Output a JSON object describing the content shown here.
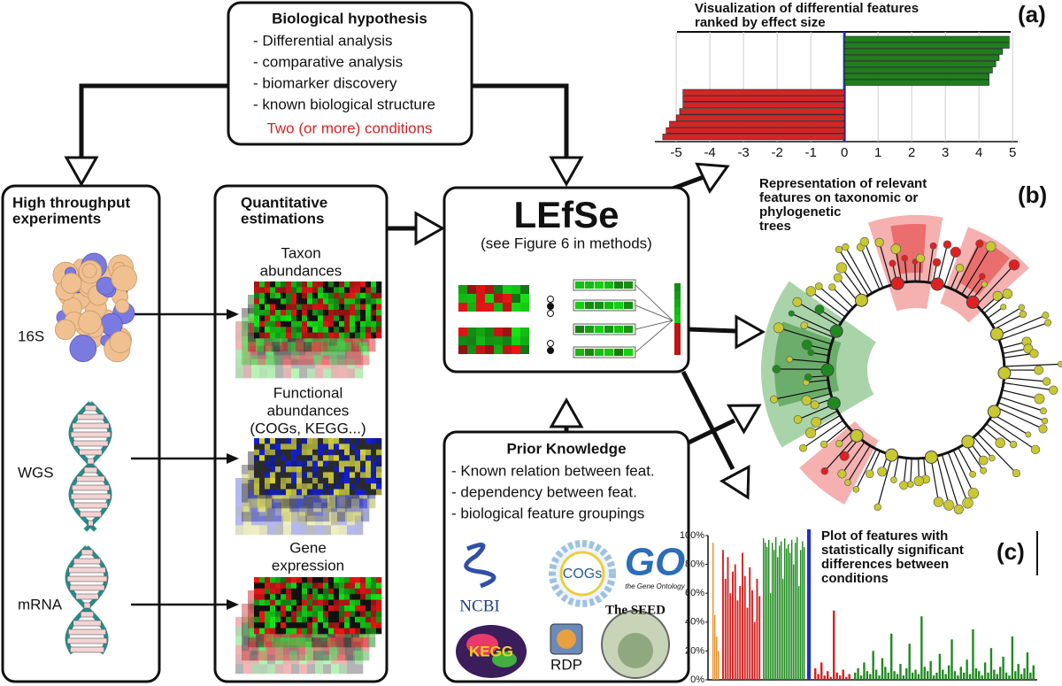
{
  "hypothesis": {
    "title": "Biological hypothesis",
    "items": [
      "- Differential analysis",
      "- comparative analysis",
      "- biomarker discovery",
      "- known biological structure"
    ],
    "conditions": "Two (or more) conditions"
  },
  "experiments": {
    "title": [
      "High throughput",
      "experiments"
    ],
    "labels": [
      "16S",
      "WGS",
      "mRNA"
    ]
  },
  "estimations": {
    "title": [
      "Quantitative",
      "estimations"
    ],
    "taxon": [
      "Taxon",
      "abundances"
    ],
    "functional": [
      "Functional",
      "abundances",
      "(COGs, KEGG...)"
    ],
    "gene": [
      "Gene",
      "expression"
    ]
  },
  "lefse": {
    "title": "LEfSe",
    "subtitle": "(see Figure 6 in methods)"
  },
  "prior_knowledge": {
    "title": "Prior Knowledge",
    "items": [
      "- Known relation between feat.",
      "- dependency between feat.",
      "- biological feature groupings"
    ],
    "logos": [
      "NCBI",
      "COGs",
      "GO",
      "the Gene Ontology",
      "KEGG",
      "RDP",
      "The SEED"
    ]
  },
  "panels": {
    "a": {
      "label": "(a)",
      "title": [
        "Visualization of differential features",
        "ranked by effect size"
      ],
      "xlim": [
        -5.45,
        5.1
      ],
      "xticks": [
        -5,
        -4,
        -3,
        -2,
        -1,
        0,
        1,
        2,
        3,
        4,
        5
      ],
      "values": [
        4.9,
        4.9,
        4.7,
        4.6,
        4.5,
        4.4,
        4.3,
        4.3,
        -4.8,
        -4.8,
        -4.8,
        -4.9,
        -5.0,
        -5.2,
        -5.3,
        -5.4
      ],
      "positive_color": "#1e7d1e",
      "negative_color": "#d42424",
      "zero_color": "#1f2fd0"
    },
    "b": {
      "label": "(b)",
      "title": [
        "Representation of relevant",
        "features on taxonomic or",
        "phylogenetic",
        "trees"
      ]
    },
    "c": {
      "label": "(c)",
      "title": [
        "Plot of features with",
        "statistically significant",
        "differences between",
        "conditions"
      ],
      "ylim": [
        0,
        100
      ],
      "yticks": [
        {
          "value": 0,
          "label": "0%"
        },
        {
          "value": 20,
          "label": "20%"
        },
        {
          "value": 40,
          "label": "40%"
        },
        {
          "value": 60,
          "label": "60%"
        },
        {
          "value": 80,
          "label": "80%"
        },
        {
          "value": 100,
          "label": "100%"
        }
      ],
      "series": [
        {
          "color": "#e8902a",
          "values": [
            95,
            45,
            30,
            20
          ]
        },
        {
          "color": "#d42424",
          "values": [
            90,
            70,
            85,
            60,
            75,
            80,
            55,
            65,
            88,
            72,
            50,
            78,
            62,
            40,
            70,
            58
          ]
        },
        {
          "color": "#1e8a1e",
          "values": [
            98,
            95,
            92,
            97,
            60,
            95,
            90,
            99,
            85,
            93,
            96,
            70,
            98,
            91,
            94,
            88,
            97,
            80,
            95,
            99,
            65,
            90,
            96,
            92
          ]
        },
        {
          "color": "#d42424",
          "values": [
            8,
            4,
            12,
            3,
            6,
            2,
            48,
            5,
            3,
            7,
            2,
            4
          ]
        },
        {
          "color": "#1e8a1e",
          "values": [
            5,
            8,
            3,
            12,
            6,
            4,
            20,
            7,
            3,
            15,
            9,
            5,
            32,
            6,
            4,
            11,
            3,
            8,
            25,
            5,
            7,
            4,
            44,
            9,
            6,
            13,
            3,
            5,
            18,
            7,
            4,
            10,
            28,
            6,
            3,
            9,
            5,
            14,
            4,
            35,
            8,
            6,
            3,
            12,
            5,
            22,
            7,
            4,
            9,
            16,
            5,
            3,
            30,
            6,
            11,
            4,
            8,
            19,
            5,
            10
          ]
        }
      ]
    }
  }
}
